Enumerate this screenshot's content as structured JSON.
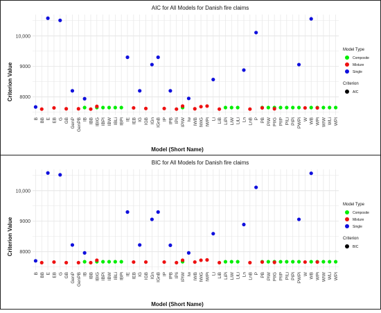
{
  "colors": {
    "Composite": "#00ee00",
    "Mixture": "#ee1111",
    "Single": "#1010dd",
    "criterion": "#000000",
    "grid": "#e6e6e6"
  },
  "chart_data": [
    {
      "type": "scatter",
      "title": "AIC for All Models for Danish fire claims",
      "xlabel": "Model (Short Name)",
      "ylabel": "Criterion Value",
      "y_ticks": [
        "8000",
        "9000",
        "10,000"
      ],
      "legend": {
        "title": "Model Type",
        "entries": [
          "Composite",
          "Mixture",
          "Single"
        ],
        "criterion_title": "Criterion",
        "criterion_entry": "AIC"
      },
      "ylim": [
        7400,
        10700
      ],
      "grid": true,
      "legend_position": "right",
      "categories": [
        "B",
        "BB",
        "E",
        "EB",
        "G",
        "GB",
        "GenP",
        "GenPB",
        "IB",
        "IBB",
        "IBIG",
        "IBPI",
        "IBW",
        "IBLi",
        "IBPi",
        "IE",
        "IEB",
        "IG",
        "IGB",
        "IGn",
        "IGnB",
        "IP",
        "IPB",
        "IPIi",
        "IPIW",
        "Iw",
        "IWB",
        "IWiG",
        "IWPi",
        "Li",
        "LiB",
        "LiPi",
        "LiW",
        "LiLi",
        "Ln",
        "LnB",
        "P",
        "PB",
        "PIW",
        "PIIG",
        "PIIP",
        "PILi",
        "PIPi",
        "PWPi",
        "W",
        "WB",
        "WPi",
        "WIW",
        "WLi",
        "WPI"
      ],
      "series": [
        {
          "name": "Composite",
          "points": [
            [
              8,
              7650
            ],
            [
              10,
              7650
            ],
            [
              11,
              7650
            ],
            [
              12,
              7650
            ],
            [
              13,
              7650
            ],
            [
              14,
              7650
            ],
            [
              24,
              7650
            ],
            [
              31,
              7650
            ],
            [
              32,
              7650
            ],
            [
              33,
              7650
            ],
            [
              37,
              7650
            ],
            [
              38,
              7650
            ],
            [
              39,
              7650
            ],
            [
              40,
              7650
            ],
            [
              41,
              7650
            ],
            [
              42,
              7650
            ],
            [
              43,
              7650
            ],
            [
              45,
              7650
            ],
            [
              46,
              7650
            ],
            [
              47,
              7650
            ],
            [
              48,
              7650
            ],
            [
              49,
              7650
            ]
          ]
        },
        {
          "name": "Mixture",
          "points": [
            [
              1,
              7600
            ],
            [
              3,
              7640
            ],
            [
              5,
              7610
            ],
            [
              7,
              7610
            ],
            [
              9,
              7600
            ],
            [
              10,
              7690
            ],
            [
              16,
              7640
            ],
            [
              18,
              7620
            ],
            [
              21,
              7620
            ],
            [
              23,
              7600
            ],
            [
              24,
              7700
            ],
            [
              26,
              7610
            ],
            [
              27,
              7680
            ],
            [
              28,
              7700
            ],
            [
              30,
              7600
            ],
            [
              35,
              7600
            ],
            [
              37,
              7640
            ],
            [
              39,
              7610
            ],
            [
              44,
              7640
            ],
            [
              46,
              7640
            ]
          ]
        },
        {
          "name": "Single",
          "points": [
            [
              0,
              7670
            ],
            [
              2,
              10580
            ],
            [
              4,
              10510
            ],
            [
              6,
              8200
            ],
            [
              8,
              7940
            ],
            [
              15,
              9300
            ],
            [
              17,
              8200
            ],
            [
              19,
              9060
            ],
            [
              20,
              9300
            ],
            [
              22,
              8200
            ],
            [
              25,
              7950
            ],
            [
              29,
              8570
            ],
            [
              34,
              8880
            ],
            [
              36,
              10110
            ],
            [
              43,
              9060
            ],
            [
              45,
              10560
            ]
          ]
        }
      ]
    },
    {
      "type": "scatter",
      "title": "BIC for All Models for Danish fire claims",
      "xlabel": "Model (Short Name)",
      "ylabel": "Criterion Value",
      "y_ticks": [
        "8000",
        "9000",
        "10,000"
      ],
      "legend": {
        "title": "Model Type",
        "entries": [
          "Composite",
          "Mixture",
          "Single"
        ],
        "criterion_title": "Criterion",
        "criterion_entry": "BIC"
      },
      "ylim": [
        7400,
        10700
      ],
      "grid": true,
      "legend_position": "right",
      "categories": [
        "B",
        "BB",
        "E",
        "EB",
        "G",
        "GB",
        "GenP",
        "GenPB",
        "IB",
        "IBB",
        "IBIG",
        "IBPI",
        "IBW",
        "IBLi",
        "IBPi",
        "IE",
        "IEB",
        "IG",
        "IGB",
        "IGn",
        "IGnB",
        "IP",
        "IPB",
        "IPIi",
        "IPIW",
        "Iw",
        "IWB",
        "IWiG",
        "IWPi",
        "Li",
        "LiB",
        "LiPi",
        "LiW",
        "LiLi",
        "Ln",
        "LnB",
        "P",
        "PB",
        "PIW",
        "PIIG",
        "PIIP",
        "PILi",
        "PIPi",
        "PWPi",
        "W",
        "WB",
        "WPi",
        "WIW",
        "WLi",
        "WPI"
      ],
      "series": [
        {
          "name": "Composite",
          "points": [
            [
              8,
              7670
            ],
            [
              10,
              7670
            ],
            [
              11,
              7670
            ],
            [
              12,
              7670
            ],
            [
              13,
              7670
            ],
            [
              14,
              7670
            ],
            [
              24,
              7670
            ],
            [
              31,
              7670
            ],
            [
              32,
              7670
            ],
            [
              33,
              7670
            ],
            [
              37,
              7670
            ],
            [
              38,
              7670
            ],
            [
              39,
              7670
            ],
            [
              40,
              7670
            ],
            [
              41,
              7670
            ],
            [
              42,
              7670
            ],
            [
              43,
              7670
            ],
            [
              45,
              7670
            ],
            [
              46,
              7670
            ],
            [
              47,
              7670
            ],
            [
              48,
              7670
            ],
            [
              49,
              7670
            ]
          ]
        },
        {
          "name": "Mixture",
          "points": [
            [
              1,
              7640
            ],
            [
              3,
              7660
            ],
            [
              5,
              7640
            ],
            [
              7,
              7640
            ],
            [
              9,
              7640
            ],
            [
              10,
              7720
            ],
            [
              16,
              7660
            ],
            [
              18,
              7660
            ],
            [
              21,
              7660
            ],
            [
              23,
              7640
            ],
            [
              24,
              7720
            ],
            [
              26,
              7660
            ],
            [
              27,
              7720
            ],
            [
              28,
              7730
            ],
            [
              30,
              7640
            ],
            [
              35,
              7640
            ],
            [
              37,
              7660
            ],
            [
              39,
              7650
            ],
            [
              44,
              7660
            ],
            [
              46,
              7660
            ]
          ]
        },
        {
          "name": "Single",
          "points": [
            [
              0,
              7700
            ],
            [
              2,
              10580
            ],
            [
              4,
              10520
            ],
            [
              6,
              8220
            ],
            [
              8,
              7960
            ],
            [
              15,
              9300
            ],
            [
              17,
              8220
            ],
            [
              19,
              9060
            ],
            [
              20,
              9300
            ],
            [
              22,
              8210
            ],
            [
              25,
              7960
            ],
            [
              29,
              8590
            ],
            [
              34,
              8890
            ],
            [
              36,
              10110
            ],
            [
              43,
              9060
            ],
            [
              45,
              10570
            ]
          ]
        }
      ]
    }
  ]
}
